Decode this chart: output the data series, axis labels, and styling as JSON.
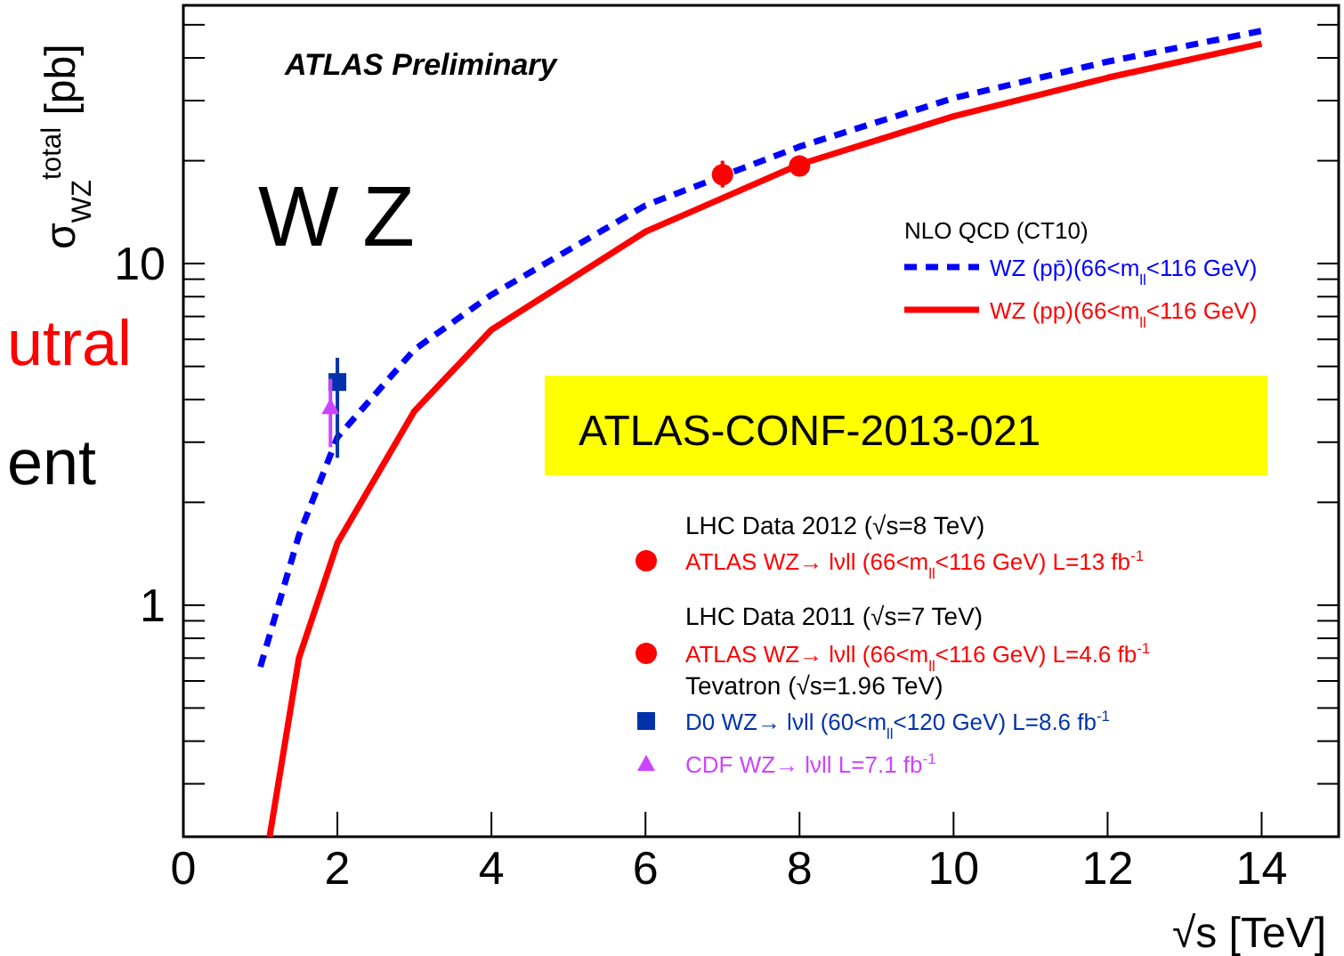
{
  "chart_data": {
    "type": "line",
    "xlabel": "√s [TeV]",
    "ylabel": "σ$_{WZ}$$^{total}$ [pb]",
    "legend_title": "NLO QCD (CT10)",
    "log": "y",
    "legend": "right",
    "grid": false,
    "xlim": [
      0,
      15
    ],
    "xticks": [
      0,
      2,
      4,
      6,
      8,
      10,
      12,
      14
    ],
    "ylim": [
      0.21,
      57
    ],
    "yticks": [
      {
        "value": 0.3,
        "label": null
      },
      {
        "value": 0.4,
        "label": null
      },
      {
        "value": 0.5,
        "label": null
      },
      {
        "value": 0.6,
        "label": null
      },
      {
        "value": 0.7,
        "label": null
      },
      {
        "value": 0.8,
        "label": null
      },
      {
        "value": 0.9,
        "label": null
      },
      {
        "value": 1,
        "label": "1"
      },
      {
        "value": 2,
        "label": null
      },
      {
        "value": 3,
        "label": null
      },
      {
        "value": 4,
        "label": null
      },
      {
        "value": 5,
        "label": null
      },
      {
        "value": 6,
        "label": null
      },
      {
        "value": 7,
        "label": null
      },
      {
        "value": 8,
        "label": null
      },
      {
        "value": 9,
        "label": null
      },
      {
        "value": 10,
        "label": "10"
      },
      {
        "value": 20,
        "label": null
      },
      {
        "value": 30,
        "label": null
      },
      {
        "value": 40,
        "label": null
      },
      {
        "value": 50,
        "label": null
      }
    ],
    "series": [
      {
        "name": "WZ (pp̄)(66<m$_{ll}$<116 GeV)",
        "color": "#0000ff",
        "line_style": "dashed",
        "x": [
          1,
          1.5,
          2,
          3,
          4,
          6,
          8,
          10,
          12,
          14
        ],
        "values": [
          0.66,
          1.6,
          3.1,
          5.6,
          8.1,
          14.8,
          22,
          30.5,
          39,
          48
        ]
      },
      {
        "name": "WZ (pp)(66<m$_{ll}$<116 GeV)",
        "color": "#ff0000",
        "line_style": "solid",
        "x": [
          1.12,
          1.5,
          2,
          3,
          4,
          6,
          8,
          10,
          12,
          14
        ],
        "values": [
          0.21,
          0.7,
          1.52,
          3.7,
          6.4,
          12.4,
          19.5,
          27,
          35,
          44
        ]
      },
      {
        "name": "ATLAS WZ→ lνll (66<m$_{ll}$<116 GeV) L=13 fb$^{-1}$",
        "type": "scatter",
        "marker": "circle",
        "color": "#ff0000",
        "x": [
          8
        ],
        "values": [
          19.3
        ],
        "errors": [
          [
            18.0,
            20.7
          ]
        ]
      },
      {
        "name": "ATLAS WZ→ lνll (66<m$_{ll}$<116 GeV) L=4.6 fb$^{-1}$",
        "type": "scatter",
        "marker": "circle",
        "color": "#ff0000",
        "x": [
          7
        ],
        "values": [
          18.2
        ],
        "errors": [
          [
            16.7,
            20.0
          ]
        ]
      },
      {
        "name": "D0 WZ→ lνll (60<m$_{ll}$<120 GeV) L=8.6 fb$^{-1}$",
        "type": "scatter",
        "marker": "square",
        "color": "#0033aa",
        "x": [
          2.0
        ],
        "values": [
          4.5
        ],
        "errors": [
          [
            2.7,
            5.3
          ]
        ]
      },
      {
        "name": "CDF WZ→ lνll  L=7.1 fb$^{-1}$",
        "type": "scatter",
        "marker": "triangle",
        "color": "#cc44ff",
        "x": [
          1.91
        ],
        "values": [
          3.8
        ],
        "errors": [
          [
            2.9,
            4.6
          ]
        ]
      }
    ],
    "annotations": [
      "ATLAS Preliminary",
      "W Z",
      "utral",
      "ent",
      "ATLAS-CONF-2013-021",
      "LHC Data 2012 (√s=8 TeV)",
      "LHC Data 2011 (√s=7 TeV)",
      "Tevatron (√s=1.96 TeV)"
    ]
  }
}
